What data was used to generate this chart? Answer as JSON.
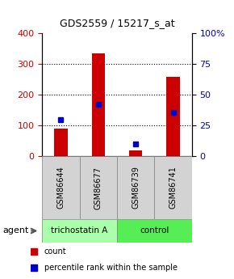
{
  "title": "GDS2559 / 15217_s_at",
  "samples": [
    "GSM86644",
    "GSM86677",
    "GSM86739",
    "GSM86741"
  ],
  "counts": [
    90,
    335,
    18,
    258
  ],
  "percentiles": [
    30,
    42,
    10,
    36
  ],
  "groups": [
    "trichostatin A",
    "trichostatin A",
    "control",
    "control"
  ],
  "group_colors": {
    "trichostatin A": "#aaffaa",
    "control": "#55ee55"
  },
  "bar_color": "#cc0000",
  "dot_color": "#0000cc",
  "left_ylim": [
    0,
    400
  ],
  "right_ylim": [
    0,
    100
  ],
  "left_yticks": [
    0,
    100,
    200,
    300,
    400
  ],
  "right_yticks": [
    0,
    25,
    50,
    75,
    100
  ],
  "right_yticklabels": [
    "0",
    "25",
    "50",
    "75",
    "100%"
  ],
  "bg_color": "#ffffff",
  "plot_bg": "#ffffff",
  "grid_color": "#000000",
  "legend_count_color": "#cc0000",
  "legend_dot_color": "#0000cc"
}
